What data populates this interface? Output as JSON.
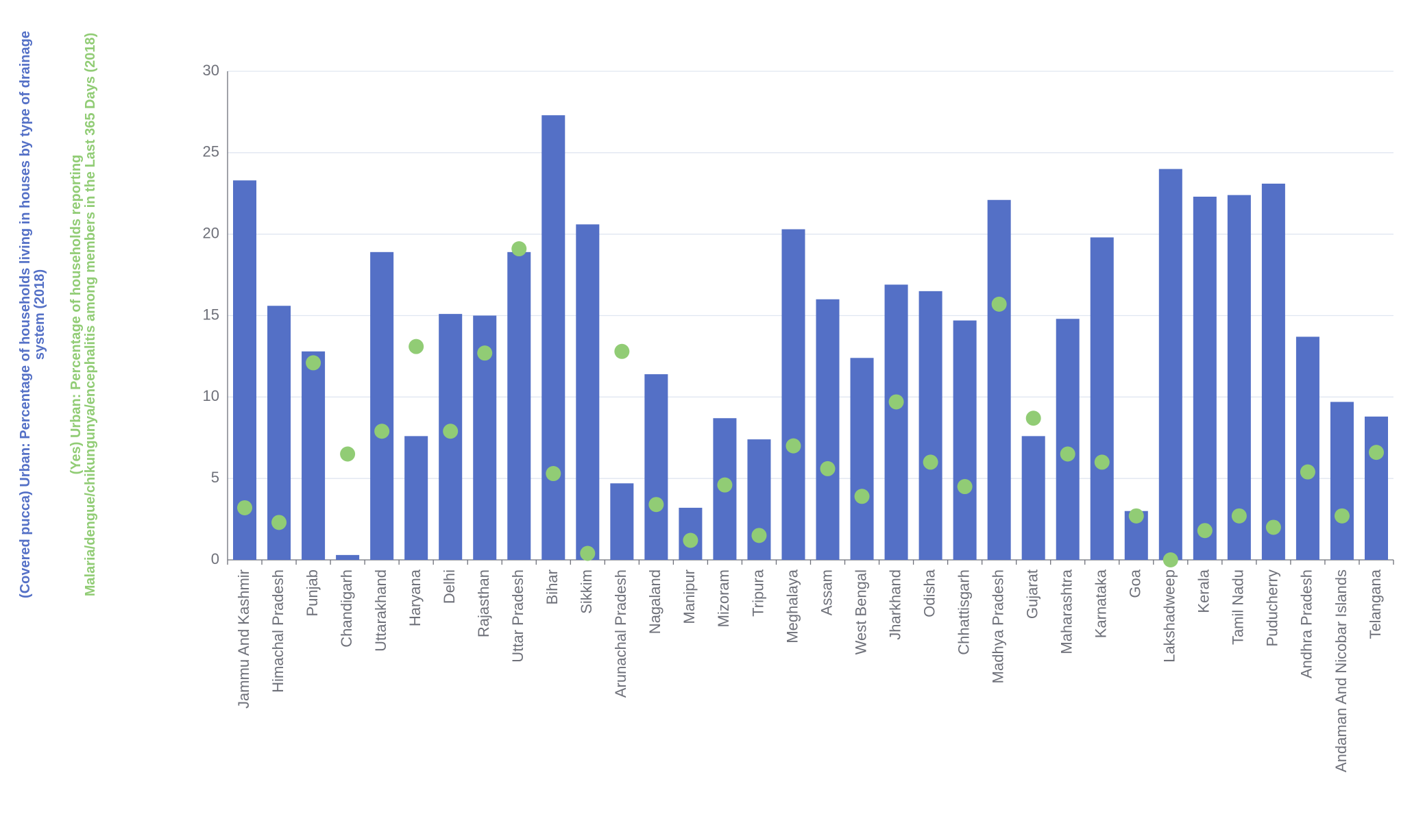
{
  "chart_data": {
    "type": "bar",
    "y_axis_titles": [
      "(Covered pucca) Urban: Percentage of households living in houses by type of drainage system (2018)",
      "(Yes) Urban: Percentage of households reporting Malaria/dengue/chikungunya/encephalitis among members in the Last 365 Days (2018)"
    ],
    "categories": [
      "Jammu And Kashmir",
      "Himachal Pradesh",
      "Punjab",
      "Chandigarh",
      "Uttarakhand",
      "Haryana",
      "Delhi",
      "Rajasthan",
      "Uttar Pradesh",
      "Bihar",
      "Sikkim",
      "Arunachal Pradesh",
      "Nagaland",
      "Manipur",
      "Mizoram",
      "Tripura",
      "Meghalaya",
      "Assam",
      "West Bengal",
      "Jharkhand",
      "Odisha",
      "Chhattisgarh",
      "Madhya Pradesh",
      "Gujarat",
      "Maharashtra",
      "Karnataka",
      "Goa",
      "Lakshadweep",
      "Kerala",
      "Tamil Nadu",
      "Puducherry",
      "Andhra Pradesh",
      "Andaman And Nicobar Islands",
      "Telangana"
    ],
    "series": [
      {
        "name": "(Covered pucca) Urban: Percentage of households living in houses by type of drainage system (2018)",
        "type": "bar",
        "color": "#5470c6",
        "values": [
          23.3,
          15.6,
          12.8,
          0.3,
          18.9,
          7.6,
          15.1,
          15.0,
          18.9,
          27.3,
          20.6,
          4.7,
          11.4,
          3.2,
          8.7,
          7.4,
          20.3,
          16.0,
          12.4,
          16.9,
          16.5,
          14.7,
          22.1,
          7.6,
          14.8,
          19.8,
          3.0,
          24.0,
          22.3,
          22.4,
          23.1,
          13.7,
          9.7,
          8.8
        ]
      },
      {
        "name": "(Yes) Urban: Percentage of households reporting Malaria/dengue/chikungunya/encephalitis among members in the Last 365 Days (2018)",
        "type": "scatter",
        "color": "#91cc75",
        "values": [
          3.2,
          2.3,
          12.1,
          6.5,
          7.9,
          13.1,
          7.9,
          12.7,
          19.1,
          5.3,
          0.4,
          12.8,
          3.4,
          1.2,
          4.6,
          1.5,
          7.0,
          5.6,
          3.9,
          9.7,
          6.0,
          4.5,
          15.7,
          8.7,
          6.5,
          6.0,
          2.7,
          0.0,
          1.8,
          2.7,
          2.0,
          5.4,
          2.7,
          6.6
        ]
      }
    ],
    "ylim": [
      0,
      30
    ],
    "yticks": [
      0,
      5,
      10,
      15,
      20,
      25,
      30
    ],
    "grid": true
  }
}
